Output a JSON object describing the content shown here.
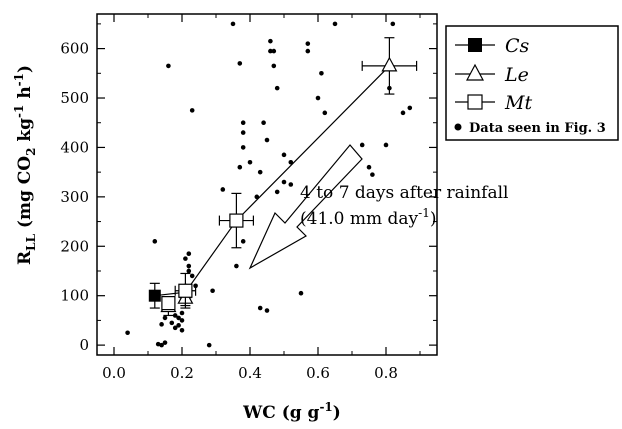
{
  "chart_data": {
    "type": "scatter",
    "xlabel": "WC (g g",
    "xlabel_sup": "-1",
    "xlabel_tail": ")",
    "ylabel_parts": {
      "r": "R",
      "r_sub": "LL",
      "main": " (mg CO",
      "co2_sub": "2",
      "kg": " kg",
      "kg_sup": "-1",
      "h": " h",
      "h_sup": "-1",
      "close": ")"
    },
    "xlim": [
      -0.05,
      0.95
    ],
    "ylim": [
      -20,
      670
    ],
    "x_ticks": [
      0.0,
      0.2,
      0.4,
      0.6,
      0.8
    ],
    "x_tick_labels": [
      "0.0",
      "0.2",
      "0.4",
      "0.6",
      "0.8"
    ],
    "y_ticks": [
      0,
      100,
      200,
      300,
      400,
      500,
      600
    ],
    "y_tick_labels": [
      "0",
      "100",
      "200",
      "300",
      "400",
      "500",
      "600"
    ],
    "legend": [
      {
        "label": "Cs",
        "marker": "filled-square"
      },
      {
        "label": "Le",
        "marker": "open-triangle"
      },
      {
        "label": "Mt",
        "marker": "open-square"
      },
      {
        "label": "Data seen in Fig. 3",
        "marker": "dot"
      }
    ],
    "legend_position": "top-right outside plot",
    "annotation": {
      "line1": "4 to 7 days after rainfall",
      "line2_main": "(41.0 mm day",
      "line2_sup": "-1",
      "line2_tail": ")"
    },
    "means": [
      {
        "name": "Cs",
        "marker": "filled-square",
        "points": [
          {
            "x": 0.12,
            "y": 100,
            "xerr": 0.0,
            "yerr": 25
          },
          {
            "x": 0.21,
            "y": 107,
            "xerr": 0.0,
            "yerr": 12
          }
        ]
      },
      {
        "name": "Le",
        "marker": "open-triangle",
        "points": [
          {
            "x": 0.16,
            "y": 78,
            "xerr": 0.0,
            "yerr": 18
          },
          {
            "x": 0.21,
            "y": 95,
            "xerr": 0.0,
            "yerr": 15
          },
          {
            "x": 0.81,
            "y": 565,
            "xerr": 0.08,
            "yerr": 57
          }
        ]
      },
      {
        "name": "Mt",
        "marker": "open-square",
        "points": [
          {
            "x": 0.16,
            "y": 85,
            "xerr": 0.0,
            "yerr": 10
          },
          {
            "x": 0.21,
            "y": 110,
            "xerr": 0.03,
            "yerr": 35
          },
          {
            "x": 0.36,
            "y": 252,
            "xerr": 0.05,
            "yerr": 55
          }
        ]
      }
    ],
    "data_points": [
      [
        0.04,
        25
      ],
      [
        0.12,
        210
      ],
      [
        0.13,
        2
      ],
      [
        0.14,
        0
      ],
      [
        0.15,
        5
      ],
      [
        0.14,
        42
      ],
      [
        0.15,
        55
      ],
      [
        0.16,
        565
      ],
      [
        0.17,
        45
      ],
      [
        0.18,
        35
      ],
      [
        0.18,
        60
      ],
      [
        0.19,
        40
      ],
      [
        0.19,
        55
      ],
      [
        0.2,
        30
      ],
      [
        0.2,
        50
      ],
      [
        0.2,
        65
      ],
      [
        0.21,
        90
      ],
      [
        0.21,
        120
      ],
      [
        0.21,
        175
      ],
      [
        0.22,
        160
      ],
      [
        0.22,
        185
      ],
      [
        0.23,
        140
      ],
      [
        0.23,
        475
      ],
      [
        0.24,
        120
      ],
      [
        0.22,
        150
      ],
      [
        0.28,
        0
      ],
      [
        0.29,
        110
      ],
      [
        0.32,
        315
      ],
      [
        0.35,
        650
      ],
      [
        0.36,
        160
      ],
      [
        0.37,
        360
      ],
      [
        0.37,
        570
      ],
      [
        0.38,
        210
      ],
      [
        0.38,
        400
      ],
      [
        0.38,
        430
      ],
      [
        0.38,
        450
      ],
      [
        0.4,
        370
      ],
      [
        0.42,
        300
      ],
      [
        0.43,
        75
      ],
      [
        0.43,
        350
      ],
      [
        0.44,
        450
      ],
      [
        0.45,
        70
      ],
      [
        0.45,
        415
      ],
      [
        0.46,
        595
      ],
      [
        0.46,
        615
      ],
      [
        0.47,
        565
      ],
      [
        0.47,
        595
      ],
      [
        0.48,
        520
      ],
      [
        0.48,
        310
      ],
      [
        0.5,
        330
      ],
      [
        0.5,
        385
      ],
      [
        0.52,
        370
      ],
      [
        0.52,
        325
      ],
      [
        0.55,
        105
      ],
      [
        0.57,
        595
      ],
      [
        0.57,
        610
      ],
      [
        0.6,
        500
      ],
      [
        0.61,
        550
      ],
      [
        0.62,
        470
      ],
      [
        0.65,
        650
      ],
      [
        0.73,
        405
      ],
      [
        0.8,
        405
      ],
      [
        0.81,
        520
      ],
      [
        0.82,
        650
      ],
      [
        0.85,
        470
      ],
      [
        0.87,
        480
      ],
      [
        0.75,
        360
      ],
      [
        0.76,
        345
      ]
    ],
    "trend_line": [
      [
        0.12,
        100
      ],
      [
        0.21,
        107
      ],
      [
        0.36,
        252
      ],
      [
        0.81,
        565
      ]
    ],
    "grid": false
  }
}
